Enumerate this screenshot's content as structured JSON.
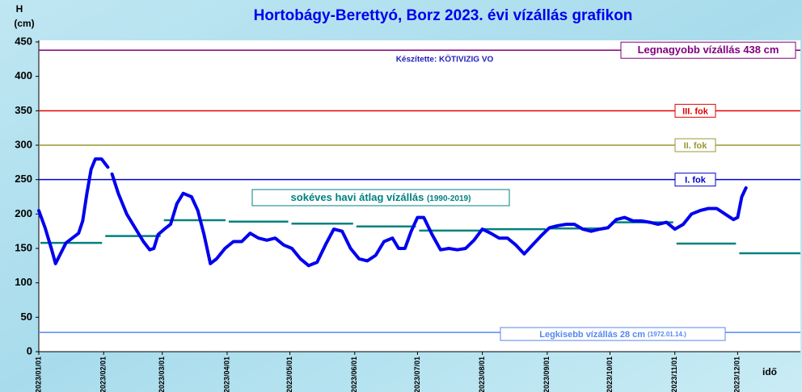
{
  "chart_data": {
    "type": "line",
    "title": "Hortobágy-Berettyó, Borz 2023. évi vízállás grafikon",
    "subtitle": "Készítette: KÖTIVIZIG VO",
    "ylabel": [
      "H",
      "(cm)"
    ],
    "xlabel": "idő",
    "ylim": [
      0,
      450
    ],
    "yticks": [
      0,
      50,
      100,
      150,
      200,
      250,
      300,
      350,
      400,
      450
    ],
    "xlim": [
      "2023/01/01",
      "2023/12/31"
    ],
    "xticks": [
      "2023/01/01",
      "2023/02/01",
      "2023/03/01",
      "2023/04/01",
      "2023/05/01",
      "2023/06/01",
      "2023/07/01",
      "2023/08/01",
      "2023/09/01",
      "2023/10/01",
      "2023/11/01",
      "2023/12/01"
    ],
    "series": [
      {
        "color": "#0000ee",
        "x": [
          "2023/01/01",
          "2023/01/04",
          "2023/01/07",
          "2023/01/09",
          "2023/01/11",
          "2023/01/14",
          "2023/01/17",
          "2023/01/20",
          "2023/01/22",
          "2023/01/24",
          "2023/01/26",
          "2023/01/28",
          "2023/01/31",
          "2023/02/01",
          "2023/02/03",
          "2023/02/04",
          "2023/02/05",
          "2023/02/08",
          "2023/02/12",
          "2023/02/16",
          "2023/02/20",
          "2023/02/23",
          "2023/02/25",
          "2023/02/27",
          "2023/03/02",
          "2023/03/05",
          "2023/03/08",
          "2023/03/11",
          "2023/03/15",
          "2023/03/18",
          "2023/03/21",
          "2023/03/24",
          "2023/03/27",
          "2023/03/31",
          "2023/04/04",
          "2023/04/08",
          "2023/04/12",
          "2023/04/16",
          "2023/04/20",
          "2023/04/24",
          "2023/04/28",
          "2023/05/02",
          "2023/05/06",
          "2023/05/10",
          "2023/05/14",
          "2023/05/18",
          "2023/05/22",
          "2023/05/26",
          "2023/05/30",
          "2023/06/03",
          "2023/06/07",
          "2023/06/11",
          "2023/06/15",
          "2023/06/19",
          "2023/06/22",
          "2023/06/25",
          "2023/06/28",
          "2023/07/01",
          "2023/07/04",
          "2023/07/08",
          "2023/07/12",
          "2023/07/16",
          "2023/07/20",
          "2023/07/24",
          "2023/07/28",
          "2023/08/01",
          "2023/08/05",
          "2023/08/09",
          "2023/08/13",
          "2023/08/17",
          "2023/08/21",
          "2023/08/25",
          "2023/08/29",
          "2023/09/02",
          "2023/09/06",
          "2023/09/10",
          "2023/09/14",
          "2023/09/18",
          "2023/09/22",
          "2023/09/26",
          "2023/09/30",
          "2023/10/04",
          "2023/10/08",
          "2023/10/12",
          "2023/10/16",
          "2023/10/20",
          "2023/10/24",
          "2023/10/28",
          "2023/11/01",
          "2023/11/05",
          "2023/11/09",
          "2023/11/13",
          "2023/11/17",
          "2023/11/21",
          "2023/11/25",
          "2023/11/29",
          "2023/12/01",
          "2023/12/03",
          "2023/12/05"
        ],
        "values": [
          205,
          180,
          150,
          128,
          140,
          158,
          165,
          172,
          190,
          230,
          265,
          280,
          280,
          276,
          268,
          null,
          258,
          230,
          200,
          180,
          160,
          148,
          150,
          170,
          178,
          185,
          215,
          230,
          225,
          205,
          170,
          128,
          135,
          150,
          160,
          160,
          172,
          165,
          162,
          165,
          155,
          150,
          135,
          125,
          130,
          155,
          178,
          175,
          150,
          135,
          132,
          140,
          160,
          165,
          150,
          150,
          175,
          195,
          195,
          170,
          148,
          150,
          148,
          150,
          162,
          178,
          172,
          165,
          165,
          155,
          142,
          155,
          168,
          180,
          183,
          185,
          185,
          178,
          175,
          178,
          180,
          192,
          195,
          190,
          190,
          188,
          185,
          188,
          178,
          185,
          200,
          205,
          208,
          208,
          200,
          192,
          195,
          225,
          238
        ]
      }
    ],
    "monthly_average": {
      "name": "sokéves havi átlag vízállás",
      "period": "(1990-2019)",
      "color": "#008080",
      "values": [
        158,
        168,
        191,
        189,
        186,
        182,
        176,
        178,
        179,
        188,
        157,
        143
      ]
    },
    "reference_lines": [
      {
        "value": 438,
        "label": "Legnagyobb vízállás 438 cm",
        "color": "#800080"
      },
      {
        "value": 350,
        "label": "III. fok",
        "color": "#e00000"
      },
      {
        "value": 300,
        "label": "II. fok",
        "color": "#999933"
      },
      {
        "value": 250,
        "label": "I. fok",
        "color": "#0000cc"
      },
      {
        "value": 28,
        "label": "Legkisebb vízállás 28 cm",
        "note": "(1972.01.14.)",
        "color": "#5588ee"
      }
    ]
  }
}
